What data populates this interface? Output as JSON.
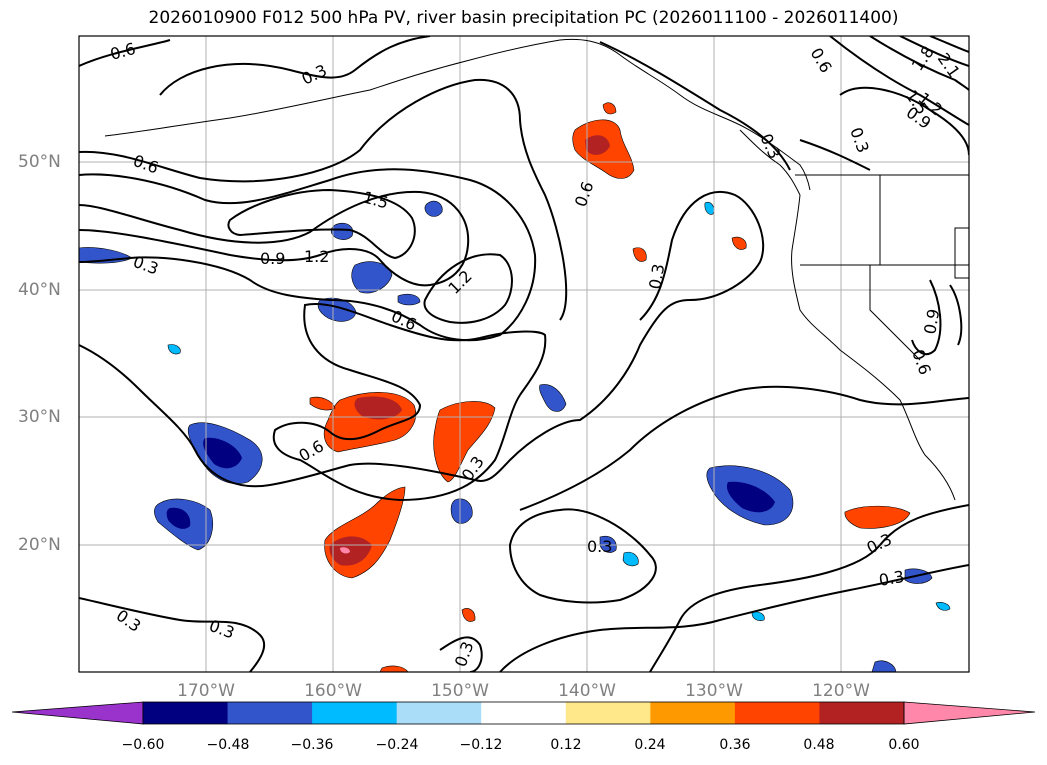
{
  "title": "2026010900 F012 500 hPa PV, river basin precipitation PC (2026011100 - 2026011400)",
  "lat_labels": [
    "50°N",
    "40°N",
    "30°N",
    "20°N"
  ],
  "lon_labels": [
    "170°W",
    "160°W",
    "150°W",
    "140°W",
    "130°W",
    "120°W"
  ],
  "contour_labels": [
    "0.6",
    "0.3",
    "0.6",
    "0.3",
    "0.6",
    "0.3",
    "2.1",
    "1.8",
    "1.5",
    "1.2",
    "0.9",
    "1.5",
    "1.2",
    "0.9",
    "0.3",
    "1.2",
    "0.6",
    "0.6",
    "0.3",
    "0.9",
    "0.6",
    "0.6",
    "0.3",
    "0.3",
    "0.3",
    "0.3",
    "0.3",
    "0.3",
    "0.3"
  ],
  "colorbar": {
    "ticks": [
      "−0.60",
      "−0.48",
      "−0.36",
      "−0.24",
      "−0.12",
      "0.12",
      "0.24",
      "0.36",
      "0.48",
      "0.60"
    ],
    "colors": [
      "#9933cc",
      "#000080",
      "#3355cc",
      "#00bbff",
      "#aaddf8",
      "#ffffff",
      "#ffe88a",
      "#ff9900",
      "#ff4400",
      "#b22222",
      "#ff88aa"
    ]
  },
  "shading_colors": {
    "neg_light": "#aaddf8",
    "neg_mid": "#00bbff",
    "neg_strong": "#3355cc",
    "neg_max": "#000080",
    "pos_light": "#ffe88a",
    "pos_mid": "#ff9900",
    "pos_strong": "#ff4400",
    "pos_max": "#b22222",
    "pos_peak": "#ff88aa"
  }
}
